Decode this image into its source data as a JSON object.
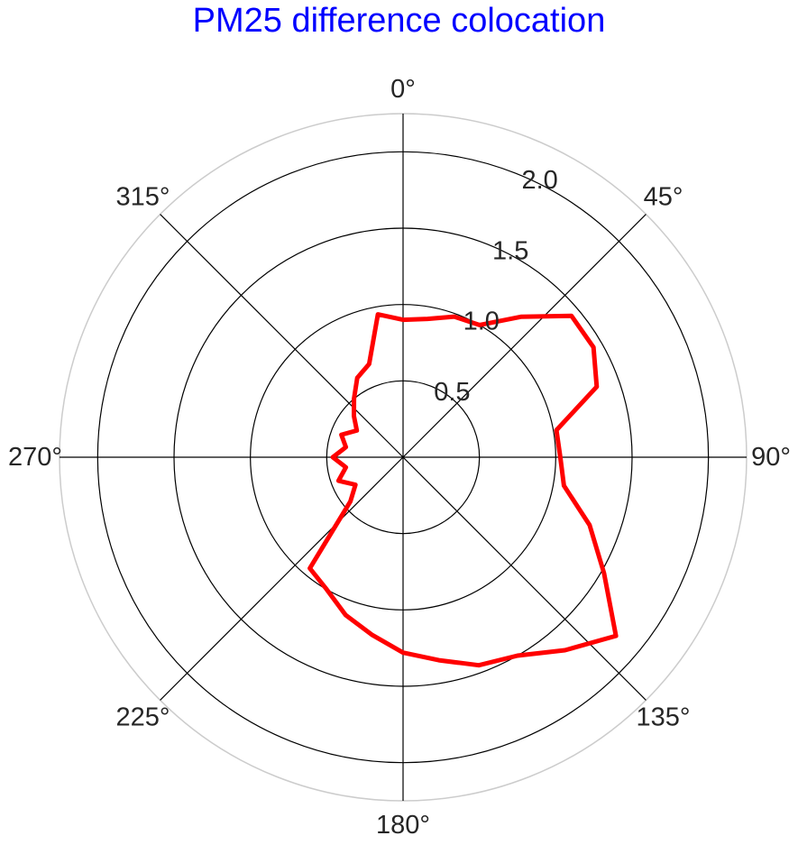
{
  "chart_data": {
    "type": "polar-line",
    "title": "PM25 difference colocation",
    "title_color": "#0000ff",
    "series_color": "#ff0000",
    "theta_direction": "clockwise",
    "theta_zero": "top",
    "theta_ticks": [
      "0°",
      "45°",
      "90°",
      "135°",
      "180°",
      "225°",
      "270°",
      "315°"
    ],
    "r_ticks": [
      {
        "value": 0.5,
        "label": "0.5"
      },
      {
        "value": 1.0,
        "label": "1.0"
      },
      {
        "value": 1.5,
        "label": "1.5"
      },
      {
        "value": 2.0,
        "label": "2.0"
      }
    ],
    "rlim": [
      0,
      2.25
    ],
    "grid": true,
    "series": [
      {
        "theta": [
          0,
          10,
          20,
          30,
          40,
          50,
          60,
          70,
          80,
          90,
          100,
          110,
          120,
          130,
          140,
          150,
          160,
          170,
          180,
          190,
          200,
          210,
          220,
          230,
          240,
          250,
          260,
          270,
          280,
          290,
          300,
          310,
          320,
          330,
          340,
          350,
          360
        ],
        "r": [
          0.9,
          0.92,
          0.98,
          1.0,
          1.2,
          1.44,
          1.44,
          1.35,
          1.02,
          1.03,
          1.07,
          1.3,
          1.52,
          1.82,
          1.65,
          1.5,
          1.45,
          1.35,
          1.28,
          1.18,
          1.1,
          1.0,
          0.95,
          0.45,
          0.36,
          0.45,
          0.38,
          0.46,
          0.38,
          0.43,
          0.35,
          0.42,
          0.5,
          0.6,
          0.65,
          0.95,
          0.9
        ]
      }
    ]
  }
}
